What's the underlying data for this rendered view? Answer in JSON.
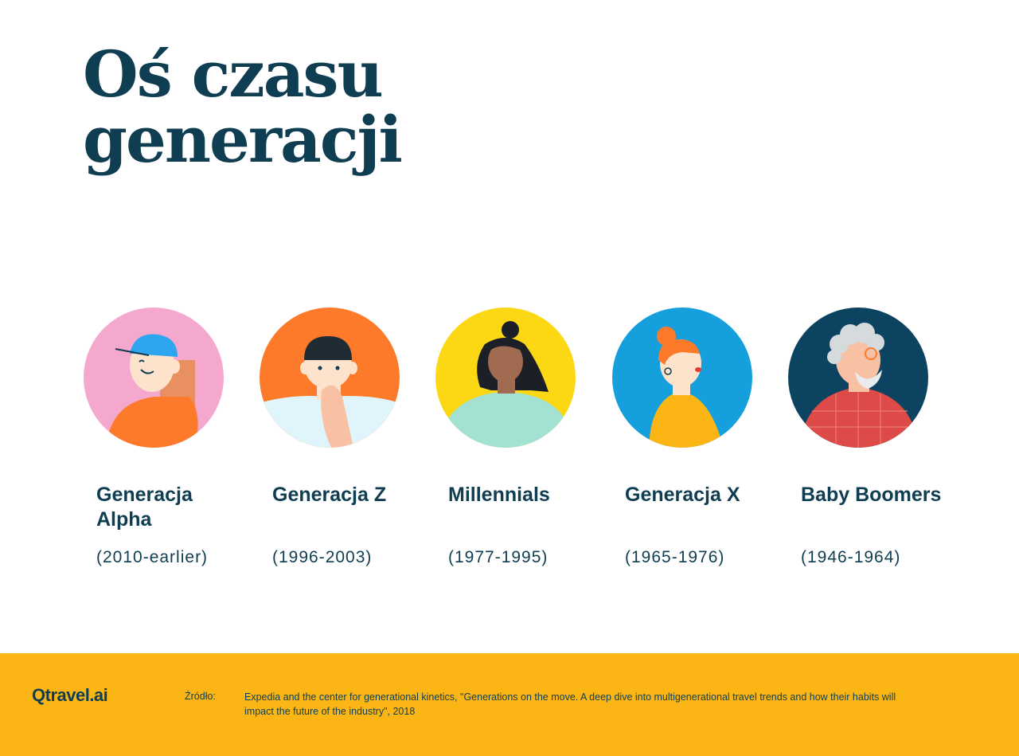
{
  "title": {
    "line1": "Oś czasu",
    "line2": "generacji"
  },
  "generations": [
    {
      "name": "Generacja Alpha",
      "years": "(2010-earlier)",
      "bg_color": "#f5a8cd",
      "illustration": "child-with-cap"
    },
    {
      "name": "Generacja Z",
      "years": "(1996-2003)",
      "bg_color": "#fd7a2a",
      "illustration": "teen-with-beanie"
    },
    {
      "name": "Millennials",
      "years": "(1977-1995)",
      "bg_color": "#fbd714",
      "illustration": "woman-with-bun"
    },
    {
      "name": "Generacja X",
      "years": "(1965-1976)",
      "bg_color": "#159fdc",
      "illustration": "redhead-woman"
    },
    {
      "name": "Baby Boomers",
      "years": "(1946-1964)",
      "bg_color": "#0c4360",
      "illustration": "grey-haired-man-with-glasses"
    }
  ],
  "footer": {
    "logo": "Qtravel.ai",
    "source_label": "Źródło:",
    "source_text": "Expedia and the center for generational kinetics, \"Generations on the move. A deep dive into multigenerational travel trends and how their habits will impact the future of the industry\", 2018",
    "bg_color": "#fbb615"
  }
}
